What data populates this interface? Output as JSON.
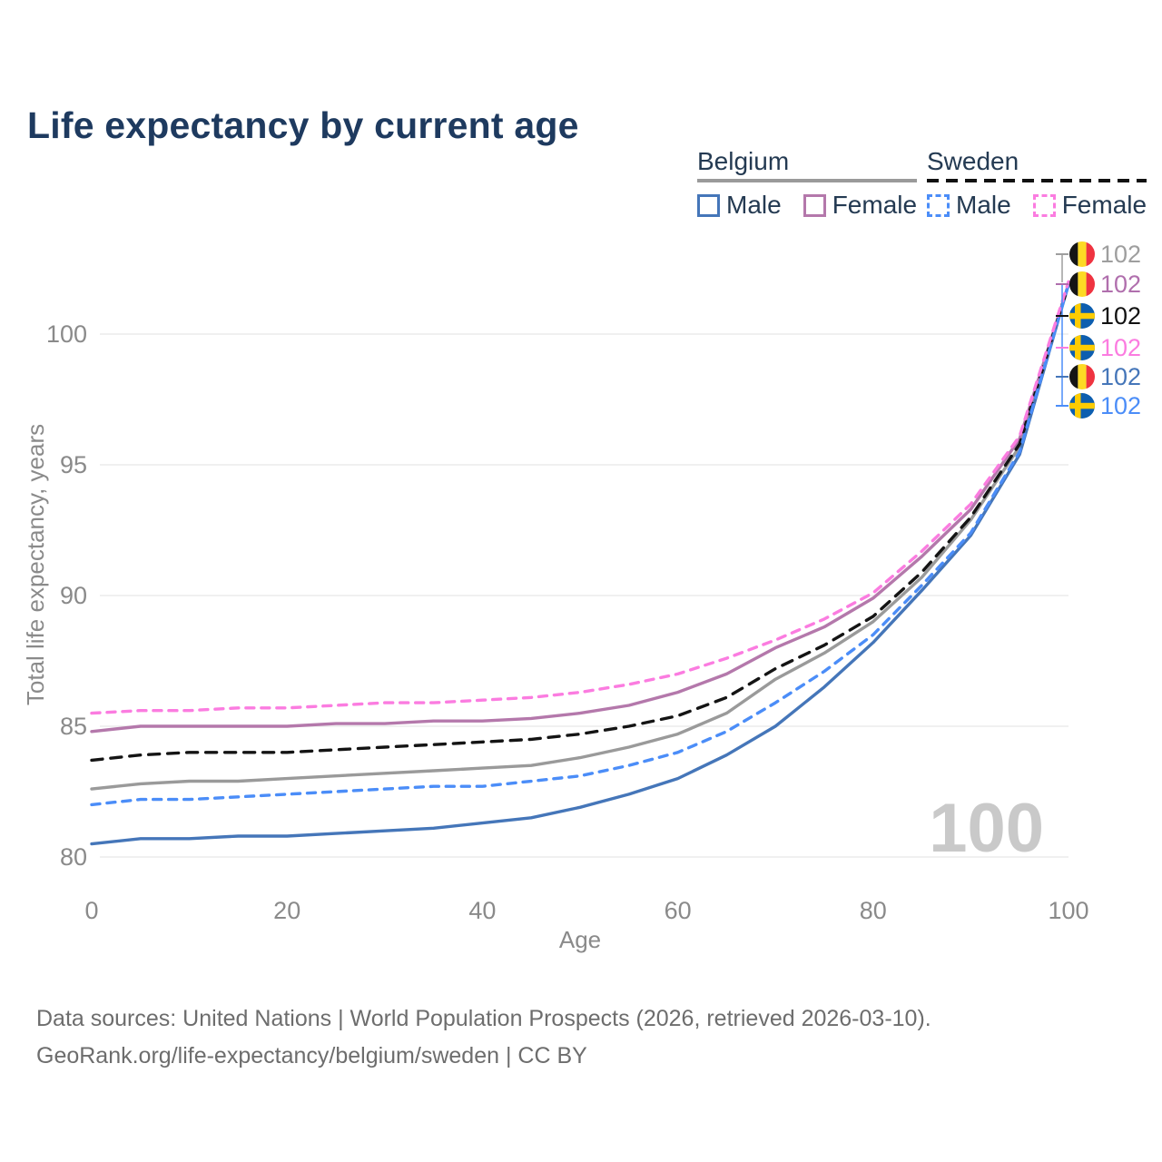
{
  "header": {
    "title": "Life expectancy by current age"
  },
  "legend": {
    "groups": [
      {
        "label": "Belgium",
        "line_style": "solid",
        "items": [
          {
            "label": "Male",
            "color": "#4576b9",
            "dashed": false
          },
          {
            "label": "Female",
            "color": "#b478ab",
            "dashed": false
          }
        ]
      },
      {
        "label": "Sweden",
        "line_style": "dashed",
        "items": [
          {
            "label": "Male",
            "color": "#4b8df8",
            "dashed": true
          },
          {
            "label": "Female",
            "color": "#fb7ce0",
            "dashed": true
          }
        ]
      }
    ]
  },
  "chart_data": {
    "type": "line",
    "title": "Life expectancy by current age",
    "xlabel": "Age",
    "ylabel": "Total life expectancy, years",
    "xlim": [
      0,
      100
    ],
    "ylim": [
      79.5,
      102.5
    ],
    "x_ticks": [
      0,
      20,
      40,
      60,
      80,
      100
    ],
    "y_ticks": [
      80,
      85,
      90,
      95,
      100
    ],
    "grid": true,
    "legend_position": "top-right",
    "hover_age_watermark": "100",
    "x": [
      0,
      5,
      10,
      15,
      20,
      25,
      30,
      35,
      40,
      45,
      50,
      55,
      60,
      65,
      70,
      75,
      80,
      85,
      90,
      95,
      100
    ],
    "series": [
      {
        "name": "Belgium both sexes",
        "country": "Belgium",
        "color": "#9a9a9a",
        "dashed": false,
        "values": [
          82.6,
          82.8,
          82.9,
          82.9,
          83.0,
          83.1,
          83.2,
          83.3,
          83.4,
          83.5,
          83.8,
          84.2,
          84.7,
          85.5,
          86.8,
          87.8,
          89.0,
          90.7,
          92.9,
          95.7,
          101.9
        ]
      },
      {
        "name": "Belgium Female",
        "country": "Belgium",
        "color": "#b478ab",
        "dashed": false,
        "values": [
          84.8,
          85.0,
          85.0,
          85.0,
          85.0,
          85.1,
          85.1,
          85.2,
          85.2,
          85.3,
          85.5,
          85.8,
          86.3,
          87.0,
          88.0,
          88.8,
          89.9,
          91.5,
          93.3,
          96.0,
          101.9
        ]
      },
      {
        "name": "Belgium Male",
        "country": "Belgium",
        "color": "#4576b9",
        "dashed": false,
        "values": [
          80.5,
          80.7,
          80.7,
          80.8,
          80.8,
          80.9,
          81.0,
          81.1,
          81.3,
          81.5,
          81.9,
          82.4,
          83.0,
          83.9,
          85.0,
          86.5,
          88.2,
          90.2,
          92.3,
          95.4,
          101.9
        ]
      },
      {
        "name": "Sweden both sexes",
        "country": "Sweden",
        "color": "#141414",
        "dashed": true,
        "values": [
          83.7,
          83.9,
          84.0,
          84.0,
          84.0,
          84.1,
          84.2,
          84.3,
          84.4,
          84.5,
          84.7,
          85.0,
          85.4,
          86.1,
          87.2,
          88.1,
          89.2,
          90.9,
          93.0,
          95.8,
          101.9
        ]
      },
      {
        "name": "Sweden Male",
        "country": "Sweden",
        "color": "#4b8df8",
        "dashed": true,
        "values": [
          82.0,
          82.2,
          82.2,
          82.3,
          82.4,
          82.5,
          82.6,
          82.7,
          82.7,
          82.9,
          83.1,
          83.5,
          84.0,
          84.8,
          85.9,
          87.1,
          88.5,
          90.4,
          92.4,
          95.5,
          101.9
        ]
      },
      {
        "name": "Sweden Female",
        "country": "Sweden",
        "color": "#fb7ce0",
        "dashed": true,
        "values": [
          85.5,
          85.6,
          85.6,
          85.7,
          85.7,
          85.8,
          85.9,
          85.9,
          86.0,
          86.1,
          86.3,
          86.6,
          87.0,
          87.6,
          88.3,
          89.1,
          90.1,
          91.7,
          93.5,
          96.1,
          102.0
        ]
      }
    ],
    "end_labels": [
      {
        "flag": "belgium",
        "value": "102",
        "color": "#9e9e9e",
        "series": "Belgium both sexes"
      },
      {
        "flag": "belgium",
        "value": "102",
        "color": "#b06fad",
        "series": "Belgium Female"
      },
      {
        "flag": "sweden",
        "value": "102",
        "color": "#111111",
        "series": "Sweden both sexes"
      },
      {
        "flag": "sweden",
        "value": "102",
        "color": "#fb7ce0",
        "series": "Sweden Female"
      },
      {
        "flag": "belgium",
        "value": "102",
        "color": "#4576b9",
        "series": "Belgium Male"
      },
      {
        "flag": "sweden",
        "value": "102",
        "color": "#4b8df8",
        "series": "Sweden Male"
      }
    ]
  },
  "footer": {
    "line1": "Data sources: United Nations | World Population Prospects (2026, retrieved 2026-03-10).",
    "line2": "GeoRank.org/life-expectancy/belgium/sweden | CC BY"
  }
}
